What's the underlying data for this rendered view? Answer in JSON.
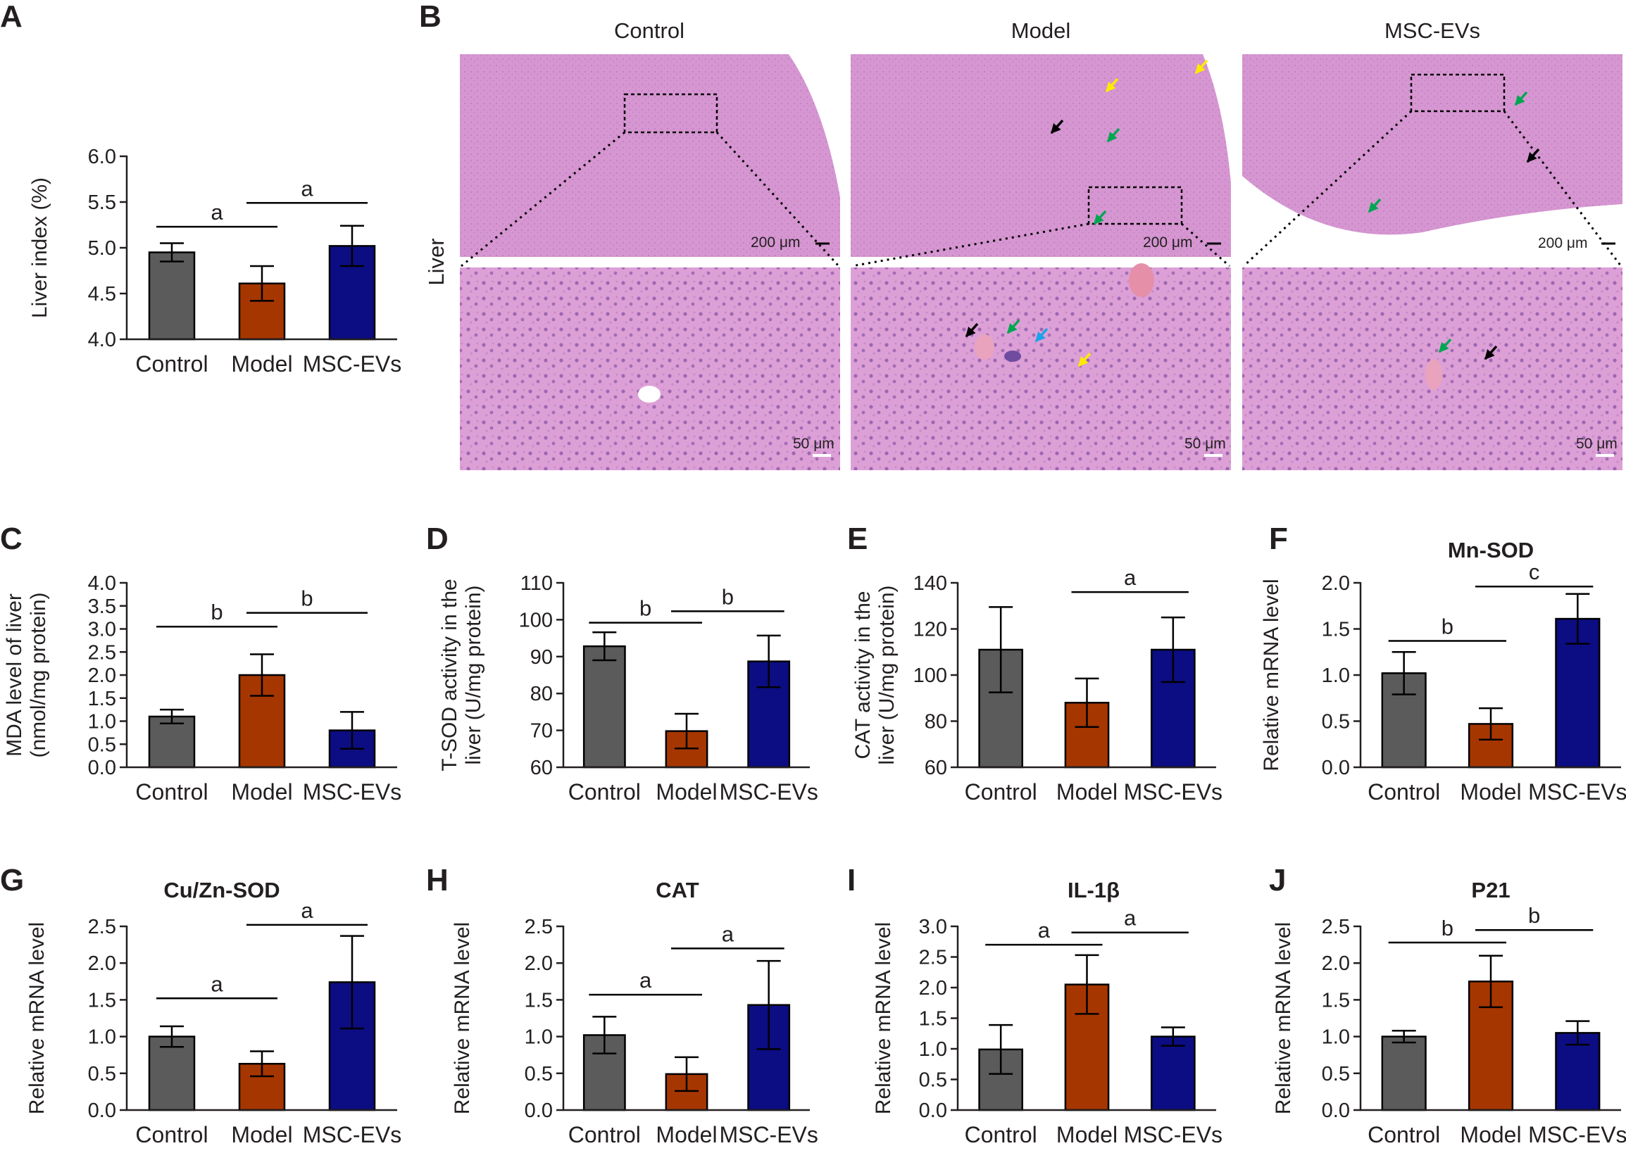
{
  "colors": {
    "Control": "#5b5b5b",
    "Model": "#a63600",
    "MSC-EVs": "#0c0d82",
    "axis": "#231f20"
  },
  "histology": {
    "letter": "B",
    "row_label": "Liver",
    "columns": [
      "Control",
      "Model",
      "MSC-EVs"
    ],
    "scale_top": "200 μm",
    "scale_bottom": "50 μm"
  },
  "chart_data": [
    {
      "id": "A",
      "type": "bar",
      "letter": "A",
      "title": "",
      "ylabel": [
        "Liver index (%)"
      ],
      "categories": [
        "Control",
        "Model",
        "MSC-EVs"
      ],
      "values": [
        4.95,
        4.61,
        5.02
      ],
      "errors": [
        0.1,
        0.19,
        0.22
      ],
      "ylim": [
        4.0,
        6.0
      ],
      "yticks": [
        "4.0",
        "4.5",
        "5.0",
        "5.5",
        "6.0"
      ],
      "significance": [
        {
          "from": 0,
          "to": 1,
          "label": "a",
          "y": 5.23
        },
        {
          "from": 1,
          "to": 2,
          "label": "a",
          "y": 5.49
        }
      ]
    },
    {
      "id": "C",
      "type": "bar",
      "letter": "C",
      "title": "",
      "ylabel": [
        "MDA level of liver",
        "(nmol/mg protein)"
      ],
      "categories": [
        "Control",
        "Model",
        "MSC-EVs"
      ],
      "values": [
        1.1,
        2.0,
        0.8
      ],
      "errors": [
        0.15,
        0.45,
        0.4
      ],
      "ylim": [
        0.0,
        4.0
      ],
      "yticks": [
        "0.0",
        "0.5",
        "1.0",
        "1.5",
        "2.0",
        "2.5",
        "3.0",
        "3.5",
        "4.0"
      ],
      "significance": [
        {
          "from": 0,
          "to": 1,
          "label": "b",
          "y": 3.05
        },
        {
          "from": 1,
          "to": 2,
          "label": "b",
          "y": 3.35
        }
      ]
    },
    {
      "id": "D",
      "type": "bar",
      "letter": "D",
      "title": "",
      "ylabel": [
        "T-SOD activity in the",
        "liver (U/mg protein)"
      ],
      "categories": [
        "Control",
        "Model",
        "MSC-EVs"
      ],
      "values": [
        92.8,
        69.8,
        88.7
      ],
      "errors": [
        3.8,
        4.7,
        7.0
      ],
      "ylim": [
        60,
        110
      ],
      "yticks": [
        "60",
        "70",
        "80",
        "90",
        "100",
        "110"
      ],
      "significance": [
        {
          "from": 0,
          "to": 1,
          "label": "b",
          "y": 99.2
        },
        {
          "from": 1,
          "to": 2,
          "label": "b",
          "y": 102.3
        }
      ]
    },
    {
      "id": "E",
      "type": "bar",
      "letter": "E",
      "title": "",
      "ylabel": [
        "CAT activity in the",
        "liver (U/mg protein)"
      ],
      "categories": [
        "Control",
        "Model",
        "MSC-EVs"
      ],
      "values": [
        111.0,
        88.0,
        111.0
      ],
      "errors": [
        18.5,
        10.5,
        14.0
      ],
      "ylim": [
        60,
        140
      ],
      "yticks": [
        "60",
        "80",
        "100",
        "120",
        "140"
      ],
      "significance": [
        {
          "from": 1,
          "to": 2,
          "label": "a",
          "y": 136.0
        }
      ]
    },
    {
      "id": "F",
      "type": "bar",
      "letter": "F",
      "title": "Mn-SOD",
      "ylabel": [
        "Relative mRNA level"
      ],
      "categories": [
        "Control",
        "Model",
        "MSC-EVs"
      ],
      "values": [
        1.02,
        0.47,
        1.61
      ],
      "errors": [
        0.23,
        0.17,
        0.27
      ],
      "ylim": [
        0.0,
        2.0
      ],
      "yticks": [
        "0.0",
        "0.5",
        "1.0",
        "1.5",
        "2.0"
      ],
      "significance": [
        {
          "from": 0,
          "to": 1,
          "label": "b",
          "y": 1.37
        },
        {
          "from": 1,
          "to": 2,
          "label": "c",
          "y": 1.96
        }
      ]
    },
    {
      "id": "G",
      "type": "bar",
      "letter": "G",
      "title": "Cu/Zn-SOD",
      "ylabel": [
        "Relative mRNA level"
      ],
      "categories": [
        "Control",
        "Model",
        "MSC-EVs"
      ],
      "values": [
        1.0,
        0.63,
        1.74
      ],
      "errors": [
        0.14,
        0.17,
        0.63
      ],
      "ylim": [
        0.0,
        2.5
      ],
      "yticks": [
        "0.0",
        "0.5",
        "1.0",
        "1.5",
        "2.0",
        "2.5"
      ],
      "significance": [
        {
          "from": 0,
          "to": 1,
          "label": "a",
          "y": 1.52
        },
        {
          "from": 1,
          "to": 2,
          "label": "a",
          "y": 2.52
        }
      ]
    },
    {
      "id": "H",
      "type": "bar",
      "letter": "H",
      "title": "CAT",
      "ylabel": [
        "Relative mRNA level"
      ],
      "categories": [
        "Control",
        "Model",
        "MSC-EVs"
      ],
      "values": [
        1.02,
        0.49,
        1.43
      ],
      "errors": [
        0.25,
        0.23,
        0.6
      ],
      "ylim": [
        0.0,
        2.5
      ],
      "yticks": [
        "0.0",
        "0.5",
        "1.0",
        "1.5",
        "2.0",
        "2.5"
      ],
      "significance": [
        {
          "from": 0,
          "to": 1,
          "label": "a",
          "y": 1.57
        },
        {
          "from": 1,
          "to": 2,
          "label": "a",
          "y": 2.2
        }
      ]
    },
    {
      "id": "I",
      "type": "bar",
      "letter": "I",
      "title": "IL-1β",
      "ylabel": [
        "Relative mRNA level"
      ],
      "categories": [
        "Control",
        "Model",
        "MSC-EVs"
      ],
      "values": [
        0.99,
        2.05,
        1.2
      ],
      "errors": [
        0.4,
        0.48,
        0.15
      ],
      "ylim": [
        0.0,
        3.0
      ],
      "yticks": [
        "0.0",
        "0.5",
        "1.0",
        "1.5",
        "2.0",
        "2.5",
        "3.0"
      ],
      "significance": [
        {
          "from": 0,
          "to": 1,
          "label": "a",
          "y": 2.7
        },
        {
          "from": 1,
          "to": 2,
          "label": "a",
          "y": 2.9
        }
      ]
    },
    {
      "id": "J",
      "type": "bar",
      "letter": "J",
      "title": "P21",
      "ylabel": [
        "Relative mRNA level"
      ],
      "categories": [
        "Control",
        "Model",
        "MSC-EVs"
      ],
      "values": [
        1.0,
        1.75,
        1.05
      ],
      "errors": [
        0.08,
        0.35,
        0.16
      ],
      "ylim": [
        0.0,
        2.5
      ],
      "yticks": [
        "0.0",
        "0.5",
        "1.0",
        "1.5",
        "2.0",
        "2.5"
      ],
      "significance": [
        {
          "from": 0,
          "to": 1,
          "label": "b",
          "y": 2.28
        },
        {
          "from": 1,
          "to": 2,
          "label": "b",
          "y": 2.45
        }
      ]
    }
  ]
}
